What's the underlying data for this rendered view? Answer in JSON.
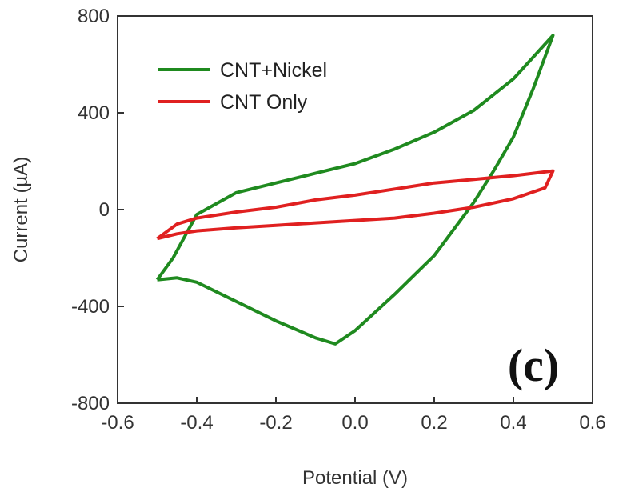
{
  "chart_data": {
    "type": "line",
    "title": "",
    "xlabel": "Potential (V)",
    "ylabel": "Current (µA)",
    "xlim": [
      -0.6,
      0.6
    ],
    "ylim": [
      -800,
      800
    ],
    "x_ticks": [
      -0.6,
      -0.4,
      -0.2,
      0.0,
      0.2,
      0.4,
      0.6
    ],
    "y_ticks": [
      -800,
      -400,
      0,
      400,
      800
    ],
    "x_tick_labels": [
      "-0.6",
      "-0.4",
      "-0.2",
      "0.0",
      "0.2",
      "0.4",
      "0.6"
    ],
    "y_tick_labels": [
      "-800",
      "-400",
      "0",
      "400",
      "800"
    ],
    "legend_position": "top-left",
    "grid": false,
    "annotation": "(c)",
    "series": [
      {
        "name": "CNT+Nickel",
        "color": "#1f8a1f",
        "points": [
          [
            -0.5,
            -290
          ],
          [
            -0.46,
            -200
          ],
          [
            -0.4,
            -20
          ],
          [
            -0.3,
            70
          ],
          [
            -0.2,
            110
          ],
          [
            -0.1,
            150
          ],
          [
            0.0,
            190
          ],
          [
            0.1,
            250
          ],
          [
            0.2,
            320
          ],
          [
            0.3,
            410
          ],
          [
            0.4,
            540
          ],
          [
            0.5,
            720
          ],
          [
            0.45,
            500
          ],
          [
            0.4,
            300
          ],
          [
            0.35,
            160
          ],
          [
            0.3,
            30
          ],
          [
            0.25,
            -80
          ],
          [
            0.2,
            -190
          ],
          [
            0.1,
            -350
          ],
          [
            0.0,
            -500
          ],
          [
            -0.05,
            -555
          ],
          [
            -0.1,
            -530
          ],
          [
            -0.2,
            -460
          ],
          [
            -0.3,
            -380
          ],
          [
            -0.4,
            -300
          ],
          [
            -0.45,
            -282
          ],
          [
            -0.5,
            -290
          ]
        ]
      },
      {
        "name": "CNT Only",
        "color": "#e02020",
        "points": [
          [
            -0.5,
            -120
          ],
          [
            -0.45,
            -60
          ],
          [
            -0.4,
            -35
          ],
          [
            -0.3,
            -10
          ],
          [
            -0.2,
            10
          ],
          [
            -0.1,
            40
          ],
          [
            0.0,
            60
          ],
          [
            0.1,
            85
          ],
          [
            0.2,
            110
          ],
          [
            0.3,
            125
          ],
          [
            0.4,
            140
          ],
          [
            0.5,
            160
          ],
          [
            0.48,
            90
          ],
          [
            0.4,
            45
          ],
          [
            0.3,
            10
          ],
          [
            0.2,
            -15
          ],
          [
            0.1,
            -35
          ],
          [
            0.0,
            -45
          ],
          [
            -0.1,
            -55
          ],
          [
            -0.2,
            -65
          ],
          [
            -0.3,
            -75
          ],
          [
            -0.4,
            -88
          ],
          [
            -0.45,
            -100
          ],
          [
            -0.5,
            -120
          ]
        ]
      }
    ]
  }
}
